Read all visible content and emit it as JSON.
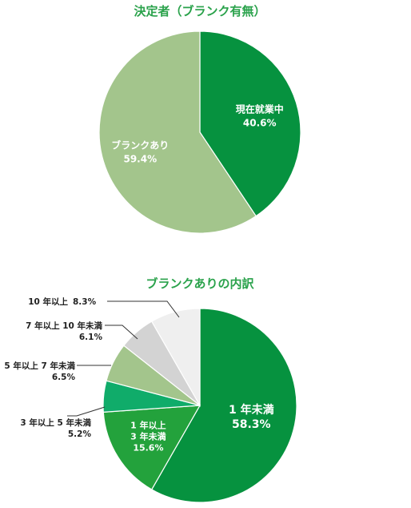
{
  "chart_data": [
    {
      "type": "pie",
      "title": "決定者（ブランク有無）",
      "start_angle_deg": 0,
      "direction": "clockwise",
      "slices": [
        {
          "label": "現在就業中",
          "value": 40.6,
          "value_label": "40.6%",
          "color": "#06923f"
        },
        {
          "label": "ブランクあり",
          "value": 59.4,
          "value_label": "59.4%",
          "color": "#a3c58c"
        }
      ]
    },
    {
      "type": "pie",
      "title": "ブランクありの内訳",
      "start_angle_deg": 0,
      "direction": "clockwise",
      "slices": [
        {
          "label": "1 年未満",
          "lines": [
            "1 年未満"
          ],
          "value": 58.3,
          "value_label": "58.3%",
          "color": "#06923f",
          "label_style": "inside"
        },
        {
          "label": "1 年以上 3 年未満",
          "lines": [
            "1 年以上",
            "3 年未満"
          ],
          "value": 15.6,
          "value_label": "15.6%",
          "color": "#23a23c",
          "label_style": "inside"
        },
        {
          "label": "3 年以上 5 年未満",
          "lines": [
            "3 年以上 5 年未満"
          ],
          "value": 5.2,
          "value_label": "5.2%",
          "color": "#10ac6a",
          "label_style": "outside"
        },
        {
          "label": "5 年以上 7 年未満",
          "lines": [
            "5 年以上 7 年未満"
          ],
          "value": 6.5,
          "value_label": "6.5%",
          "color": "#a3c58c",
          "label_style": "outside"
        },
        {
          "label": "7 年以上 10 年未満",
          "lines": [
            "7 年以上 10 年未満"
          ],
          "value": 6.1,
          "value_label": "6.1%",
          "color": "#d3d3d3",
          "label_style": "outside"
        },
        {
          "label": "10 年以上",
          "lines": [
            "10 年以上"
          ],
          "value": 8.3,
          "value_label": "8.3%",
          "color": "#efefef",
          "label_style": "outside-inline"
        }
      ]
    }
  ]
}
